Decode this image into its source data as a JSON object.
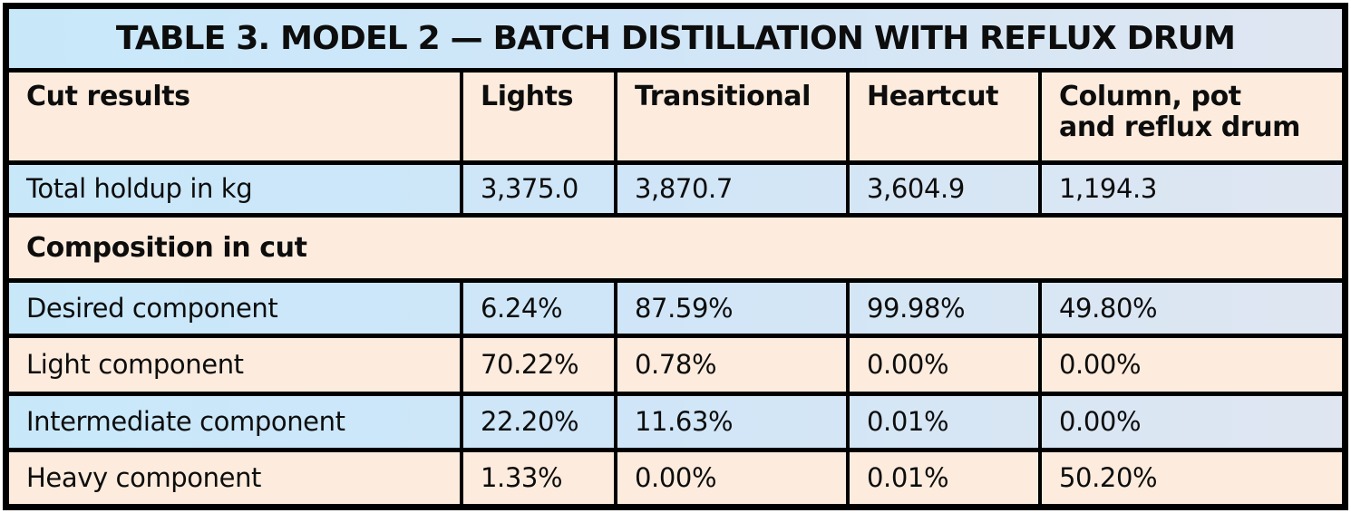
{
  "table": {
    "title": "TABLE 3. MODEL 2 — BATCH DISTILLATION WITH REFLUX DRUM",
    "header": {
      "columns": [
        "Cut results",
        "Lights",
        "Transitional",
        "Heartcut",
        "Column, pot\nand reflux drum"
      ]
    },
    "section_label": "Composition in cut",
    "rows": [
      {
        "label": "Total holdup in kg",
        "values": [
          "3,375.0",
          "3,870.7",
          "3,604.9",
          "1,194.3"
        ]
      },
      {
        "label": "Desired component",
        "values": [
          "6.24%",
          "87.59%",
          "99.98%",
          "49.80%"
        ]
      },
      {
        "label": "Light component",
        "values": [
          "70.22%",
          "0.78%",
          "0.00%",
          "0.00%"
        ]
      },
      {
        "label": "Intermediate component",
        "values": [
          "22.20%",
          "11.63%",
          "0.01%",
          "0.00%"
        ]
      },
      {
        "label": "Heavy component",
        "values": [
          "1.33%",
          "0.00%",
          "0.01%",
          "50.20%"
        ]
      }
    ],
    "colors": {
      "blue_gradient_left": "#c8e8fa",
      "blue_gradient_right": "#dfe6f1",
      "cream": "#fdecdd",
      "border": "#000000",
      "text": "#0d0d0d"
    }
  }
}
